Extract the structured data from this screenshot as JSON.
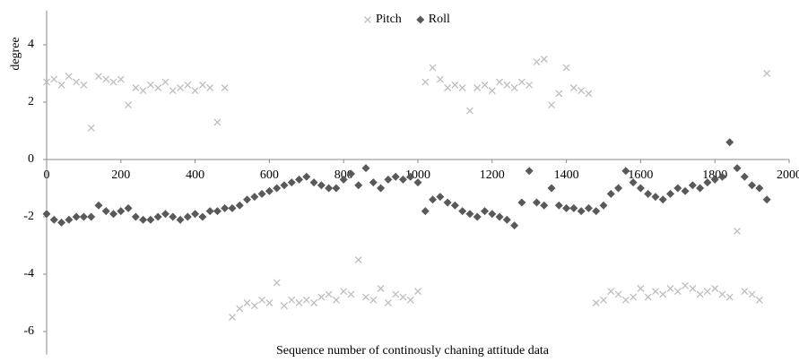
{
  "chart_data": {
    "type": "scatter",
    "y_label": "degree",
    "x_label": "Sequence number of continously chaning attitude data",
    "x": [
      0,
      20,
      40,
      60,
      80,
      100,
      120,
      140,
      160,
      180,
      200,
      220,
      240,
      260,
      280,
      300,
      320,
      340,
      360,
      380,
      400,
      420,
      440,
      460,
      480,
      500,
      520,
      540,
      560,
      580,
      600,
      620,
      640,
      660,
      680,
      700,
      720,
      740,
      760,
      780,
      800,
      820,
      840,
      860,
      880,
      900,
      920,
      940,
      960,
      980,
      1000,
      1020,
      1040,
      1060,
      1080,
      1100,
      1120,
      1140,
      1160,
      1180,
      1200,
      1220,
      1240,
      1260,
      1280,
      1300,
      1320,
      1340,
      1360,
      1380,
      1400,
      1420,
      1440,
      1460,
      1480,
      1500,
      1520,
      1540,
      1560,
      1580,
      1600,
      1620,
      1640,
      1660,
      1680,
      1700,
      1720,
      1740,
      1760,
      1780,
      1800,
      1820,
      1840,
      1860,
      1880,
      1900,
      1920,
      1940
    ],
    "series": [
      {
        "name": "Pitch",
        "color": "#bdbdbd",
        "values": [
          2.7,
          2.8,
          2.6,
          2.9,
          2.7,
          2.6,
          1.1,
          2.9,
          2.8,
          2.7,
          2.8,
          1.9,
          2.5,
          2.4,
          2.6,
          2.5,
          2.7,
          2.4,
          2.5,
          2.6,
          2.4,
          2.6,
          2.5,
          1.3,
          2.5,
          -5.5,
          -5.2,
          -5.0,
          -5.1,
          -4.9,
          -5.0,
          -4.3,
          -5.1,
          -4.9,
          -5.0,
          -4.9,
          -5.0,
          -4.8,
          -4.7,
          -4.9,
          -4.6,
          -4.7,
          -3.5,
          -4.8,
          -4.9,
          -4.5,
          -5.0,
          -4.7,
          -4.8,
          -4.9,
          -4.6,
          2.7,
          3.2,
          2.8,
          2.5,
          2.6,
          2.5,
          1.7,
          2.5,
          2.6,
          2.4,
          2.7,
          2.6,
          2.5,
          2.7,
          2.6,
          3.4,
          3.5,
          1.9,
          2.3,
          3.2,
          2.5,
          2.4,
          2.3,
          -5.0,
          -4.9,
          -4.6,
          -4.7,
          -4.9,
          -4.8,
          -4.5,
          -4.8,
          -4.6,
          -4.7,
          -4.5,
          -4.6,
          -4.4,
          -4.5,
          -4.7,
          -4.6,
          -4.5,
          -4.7,
          -4.8,
          -2.5,
          -4.6,
          -4.7,
          -4.9,
          3.0
        ]
      },
      {
        "name": "Roll",
        "color": "#595959",
        "values": [
          -1.9,
          -2.1,
          -2.2,
          -2.1,
          -2.0,
          -2.0,
          -2.0,
          -1.6,
          -1.8,
          -1.9,
          -1.8,
          -1.7,
          -2.0,
          -2.1,
          -2.1,
          -2.0,
          -1.9,
          -2.0,
          -2.1,
          -2.0,
          -1.9,
          -2.0,
          -1.8,
          -1.8,
          -1.7,
          -1.7,
          -1.6,
          -1.4,
          -1.3,
          -1.2,
          -1.1,
          -1.0,
          -0.9,
          -0.8,
          -0.7,
          -0.6,
          -0.8,
          -0.9,
          -1.0,
          -1.0,
          -0.7,
          -0.5,
          -0.9,
          -0.3,
          -0.8,
          -1.0,
          -0.7,
          -0.6,
          -0.7,
          -0.6,
          -0.8,
          -1.8,
          -1.4,
          -1.3,
          -1.5,
          -1.6,
          -1.8,
          -1.9,
          -2.0,
          -1.8,
          -1.9,
          -2.0,
          -2.1,
          -2.3,
          -1.5,
          -0.4,
          -1.5,
          -1.6,
          -1.0,
          -1.6,
          -1.7,
          -1.7,
          -1.8,
          -1.7,
          -1.8,
          -1.6,
          -1.2,
          -1.0,
          -0.4,
          -0.8,
          -1.0,
          -1.2,
          -1.3,
          -1.4,
          -1.2,
          -1.0,
          -1.1,
          -0.9,
          -1.0,
          -0.8,
          -0.7,
          -0.6,
          0.6,
          -0.3,
          -0.6,
          -0.9,
          -1.0,
          -1.4
        ]
      }
    ],
    "xlim": [
      0,
      2000
    ],
    "xticks": [
      0,
      200,
      400,
      600,
      800,
      1000,
      1200,
      1400,
      1600,
      1800,
      2000
    ],
    "ylim": [
      -6.8,
      5.2
    ],
    "yticks": [
      -6,
      -4,
      -2,
      0,
      2,
      4
    ],
    "grid": false,
    "legend": "top"
  }
}
